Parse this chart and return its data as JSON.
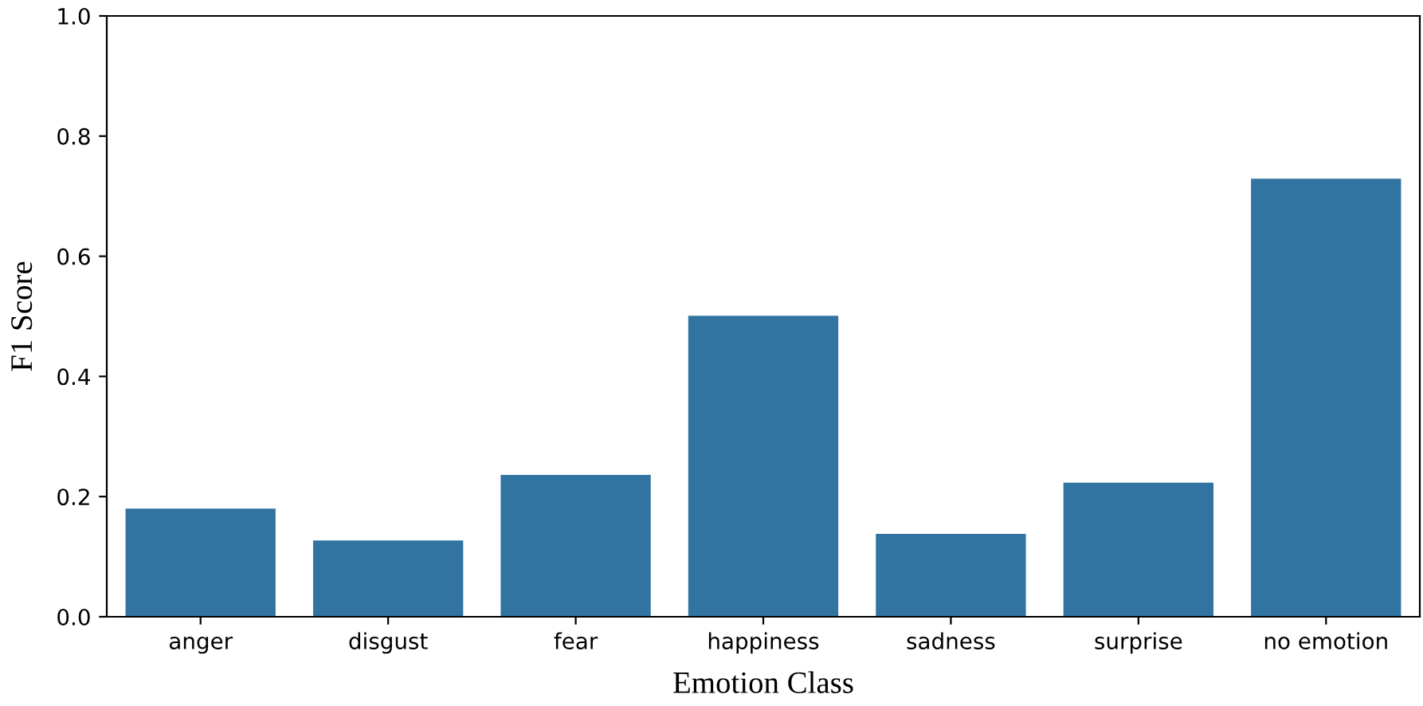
{
  "chart_data": {
    "type": "bar",
    "xlabel": "Emotion Class",
    "ylabel": "F1 Score",
    "categories": [
      "anger",
      "disgust",
      "fear",
      "happiness",
      "sadness",
      "surprise",
      "no emotion"
    ],
    "values": [
      0.18,
      0.127,
      0.236,
      0.501,
      0.138,
      0.223,
      0.729
    ],
    "color": "#3274a1",
    "ylim": [
      0,
      1.0
    ],
    "yticks": [
      {
        "value": 0,
        "label": "0.0"
      },
      0.2,
      0.4,
      0.6,
      0.8,
      {
        "value": 1,
        "label": "1.0"
      }
    ],
    "grid": false
  }
}
